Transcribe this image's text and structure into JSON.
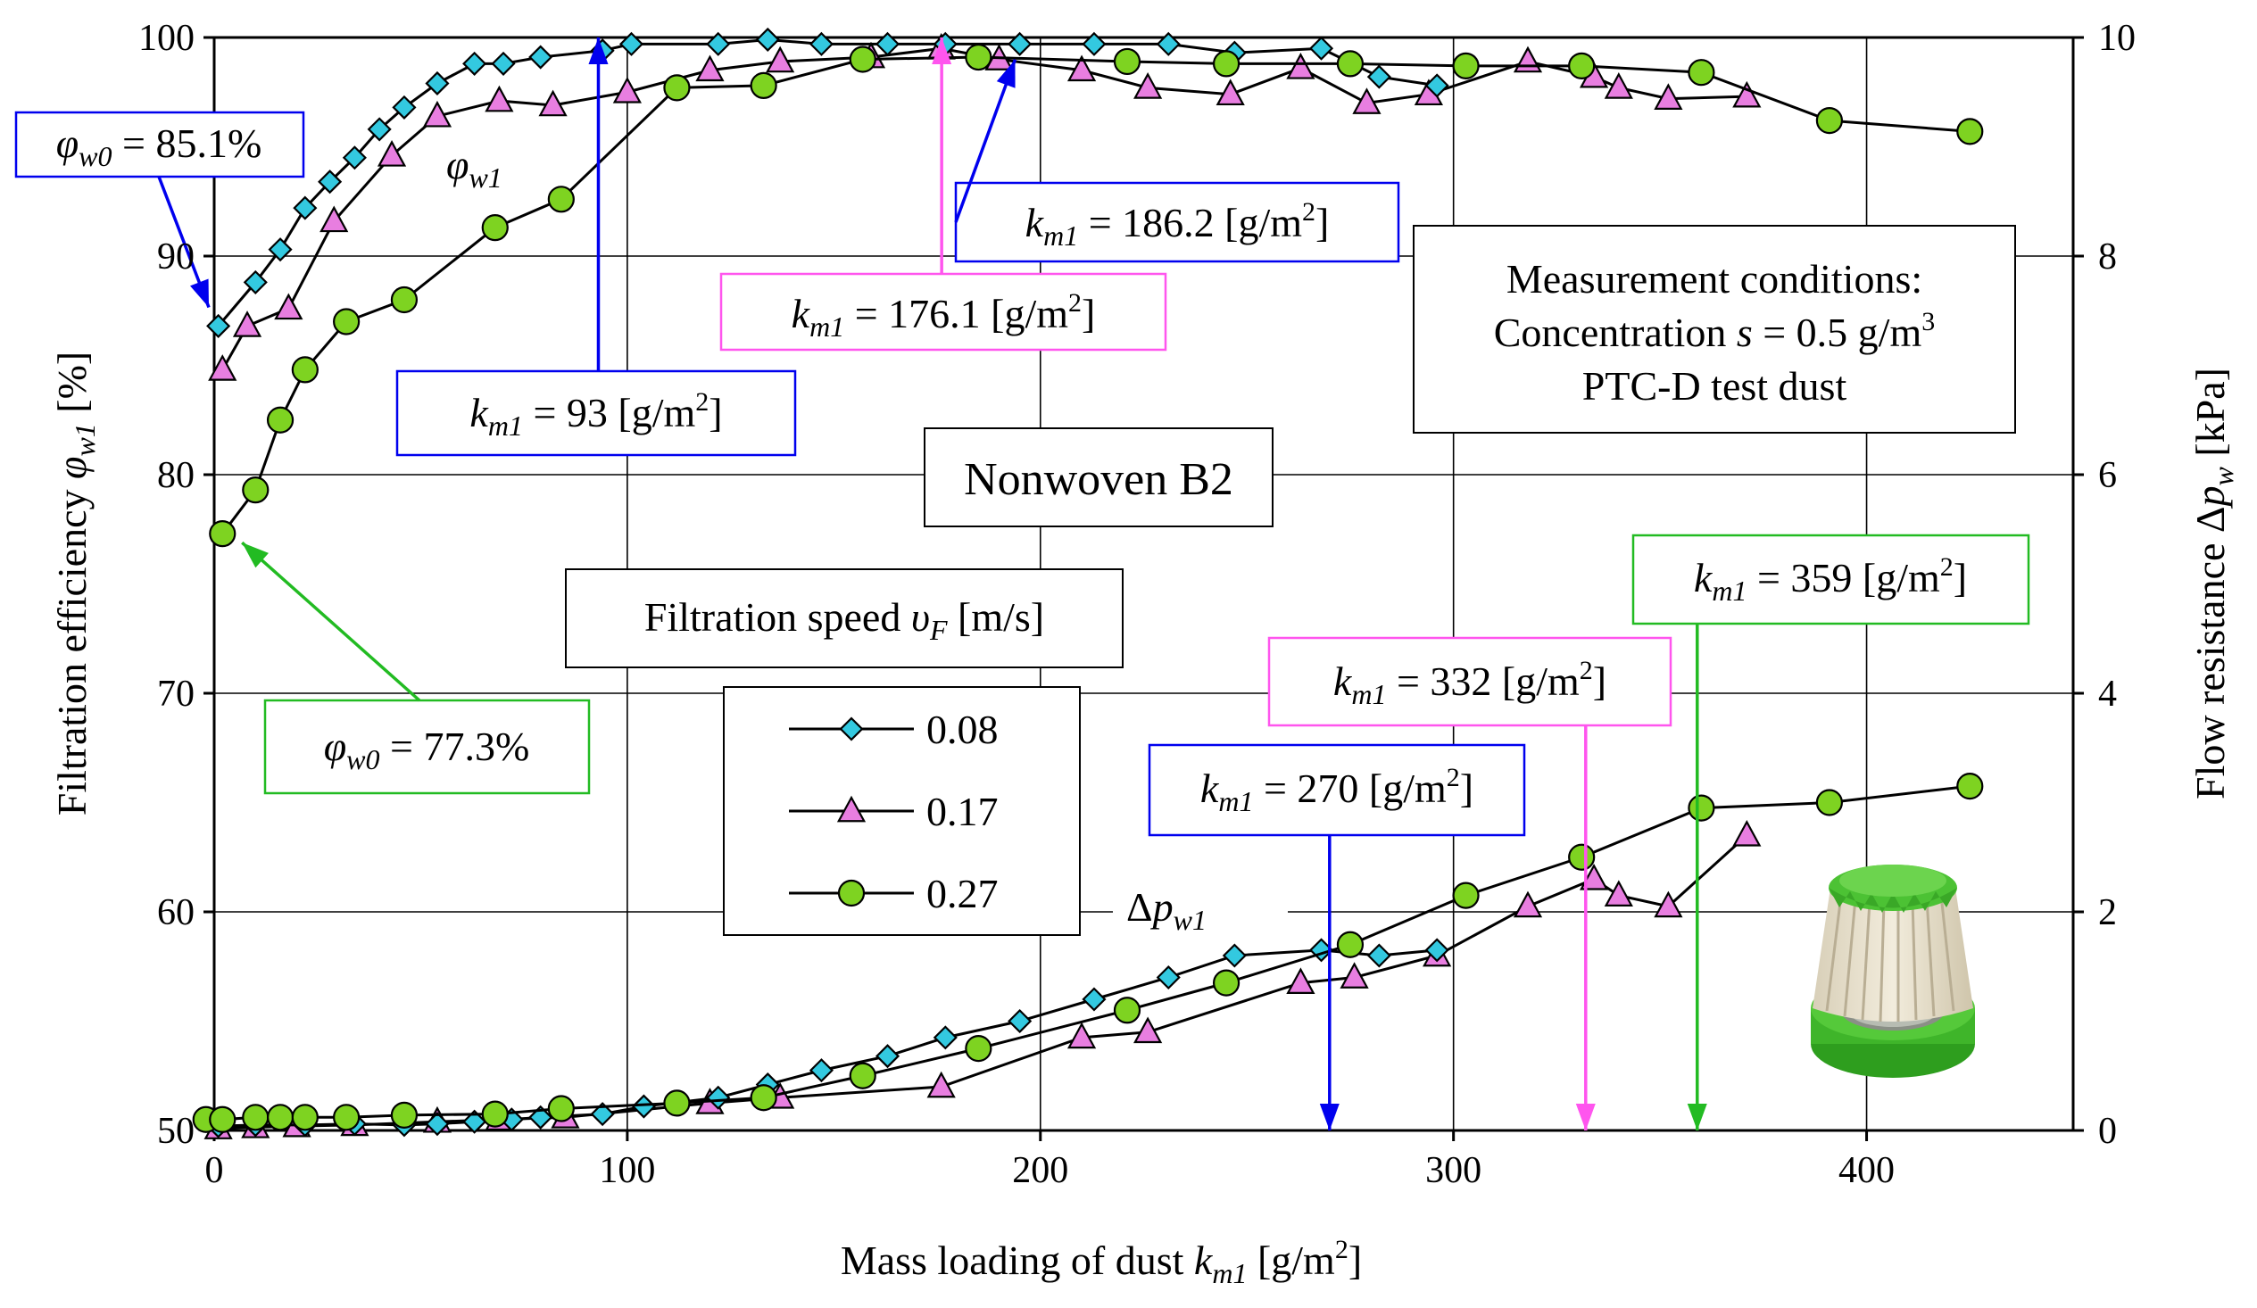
{
  "chart_data": {
    "type": "line",
    "title": "Nonwoven B2",
    "xlabel": "Mass loading of dust k_m1 [g/m2]",
    "ylabel_left": "Filtration efficiency φ_w1 [%]",
    "ylabel_right": "Flow resistance Δp_w [kPa]",
    "xlim": [
      0,
      450
    ],
    "ylim_left": [
      50,
      100
    ],
    "ylim_right": [
      0,
      10
    ],
    "x_ticks": [
      0,
      100,
      200,
      300,
      400
    ],
    "y_left_ticks": [
      50,
      60,
      70,
      80,
      90,
      100
    ],
    "y_right_ticks": [
      0,
      2,
      4,
      6,
      8,
      10
    ],
    "grid": true,
    "legend_title": "Filtration speed υ_F [m/s]",
    "legend_position": "center",
    "series": [
      {
        "name": "0.08",
        "marker": "diamond",
        "color": "#33c9e0",
        "efficiency": {
          "x": [
            1,
            10,
            16,
            22,
            28,
            34,
            40,
            46,
            54,
            63,
            70,
            79,
            94,
            101,
            122,
            134,
            147,
            163,
            177,
            195,
            213,
            231,
            247,
            268,
            282,
            296
          ],
          "y": [
            86.8,
            88.8,
            90.3,
            92.2,
            93.4,
            94.5,
            95.8,
            96.8,
            97.9,
            98.8,
            98.8,
            99.1,
            99.4,
            99.7,
            99.7,
            99.9,
            99.7,
            99.7,
            99.7,
            99.7,
            99.7,
            99.7,
            99.3,
            99.5,
            98.2,
            97.8
          ]
        },
        "resistance": {
          "x": [
            1,
            10,
            22,
            34,
            46,
            54,
            63,
            72,
            79,
            94,
            104,
            122,
            134,
            147,
            163,
            177,
            195,
            213,
            231,
            247,
            268,
            282,
            296
          ],
          "y": [
            0.04,
            0.05,
            0.05,
            0.06,
            0.05,
            0.06,
            0.08,
            0.1,
            0.12,
            0.15,
            0.22,
            0.3,
            0.42,
            0.55,
            0.68,
            0.85,
            1.0,
            1.2,
            1.4,
            1.6,
            1.65,
            1.6,
            1.65
          ]
        }
      },
      {
        "name": "0.17",
        "marker": "triangle",
        "color": "#e87ee0",
        "efficiency": {
          "x": [
            2,
            8,
            18,
            29,
            43,
            54,
            69,
            82,
            100,
            120,
            137,
            159,
            176,
            190,
            210,
            226,
            246,
            263,
            279,
            294,
            318,
            334,
            340,
            352,
            371
          ],
          "y": [
            84.8,
            86.8,
            87.6,
            91.6,
            94.6,
            96.4,
            97.1,
            96.9,
            97.5,
            98.5,
            98.9,
            99.1,
            99.5,
            99.0,
            98.5,
            97.7,
            97.4,
            98.6,
            97.0,
            97.4,
            98.9,
            98.2,
            97.7,
            97.2,
            97.3
          ]
        },
        "resistance": {
          "x": [
            1,
            10,
            20,
            34,
            54,
            69,
            85,
            120,
            137,
            176,
            210,
            226,
            263,
            276,
            296,
            318,
            334,
            340,
            352,
            371
          ],
          "y": [
            0.02,
            0.03,
            0.04,
            0.05,
            0.08,
            0.1,
            0.12,
            0.25,
            0.3,
            0.4,
            0.85,
            0.9,
            1.35,
            1.4,
            1.6,
            2.05,
            2.3,
            2.15,
            2.05,
            2.7
          ]
        }
      },
      {
        "name": "0.27",
        "marker": "circle",
        "color": "#7ed321",
        "efficiency": {
          "x": [
            2,
            10,
            16,
            22,
            32,
            46,
            68,
            84,
            112,
            133,
            157,
            185,
            221,
            245,
            275,
            303,
            331,
            360,
            391,
            425
          ],
          "y": [
            77.3,
            79.3,
            82.5,
            84.8,
            87.0,
            88.0,
            91.3,
            92.6,
            97.7,
            97.8,
            99.0,
            99.1,
            98.9,
            98.8,
            98.8,
            98.7,
            98.7,
            98.4,
            96.2,
            95.7
          ]
        },
        "resistance": {
          "x": [
            -2,
            2,
            10,
            16,
            22,
            32,
            46,
            68,
            84,
            112,
            133,
            157,
            185,
            221,
            245,
            275,
            303,
            331,
            360,
            391,
            425
          ],
          "y": [
            0.1,
            0.1,
            0.12,
            0.12,
            0.12,
            0.12,
            0.14,
            0.15,
            0.2,
            0.25,
            0.3,
            0.5,
            0.75,
            1.1,
            1.35,
            1.7,
            2.15,
            2.5,
            2.95,
            3.0,
            3.15
          ]
        }
      }
    ],
    "series_labels": {
      "efficiency": "φw1",
      "resistance": "Δpw1"
    },
    "conditions_box": {
      "line1": "Measurement conditions:",
      "line2": "Concentration s = 0.5 g/m3",
      "line3": "PTC-D test dust"
    },
    "annotations": [
      {
        "text": "φw0 = 85.1%",
        "color": "#0000ee",
        "target_x": 0,
        "target_y_left": 87.0
      },
      {
        "text": "φw0 = 77.3%",
        "color": "#22bb22",
        "target_x": 2,
        "target_y_left": 77.3
      },
      {
        "text": "km1 = 93 [g/m2]",
        "color": "#0000ee",
        "target_x": 93,
        "target_y_left": 100
      },
      {
        "text": "km1 = 176.1 [g/m2]",
        "color": "#ff55ee",
        "target_x": 176.1,
        "target_y_left": 100
      },
      {
        "text": "km1 = 186.2 [g/m2]",
        "color": "#0000ee",
        "target_x": 190,
        "target_y_left": 98.5
      },
      {
        "text": "km1 = 270 [g/m2]",
        "color": "#0000ee",
        "target_x": 270,
        "target_y_right": 0
      },
      {
        "text": "km1 = 332 [g/m2]",
        "color": "#ff55ee",
        "target_x": 332,
        "target_y_right": 0
      },
      {
        "text": "km1 = 359 [g/m2]",
        "color": "#22bb22",
        "target_x": 359,
        "target_y_right": 0
      }
    ]
  }
}
